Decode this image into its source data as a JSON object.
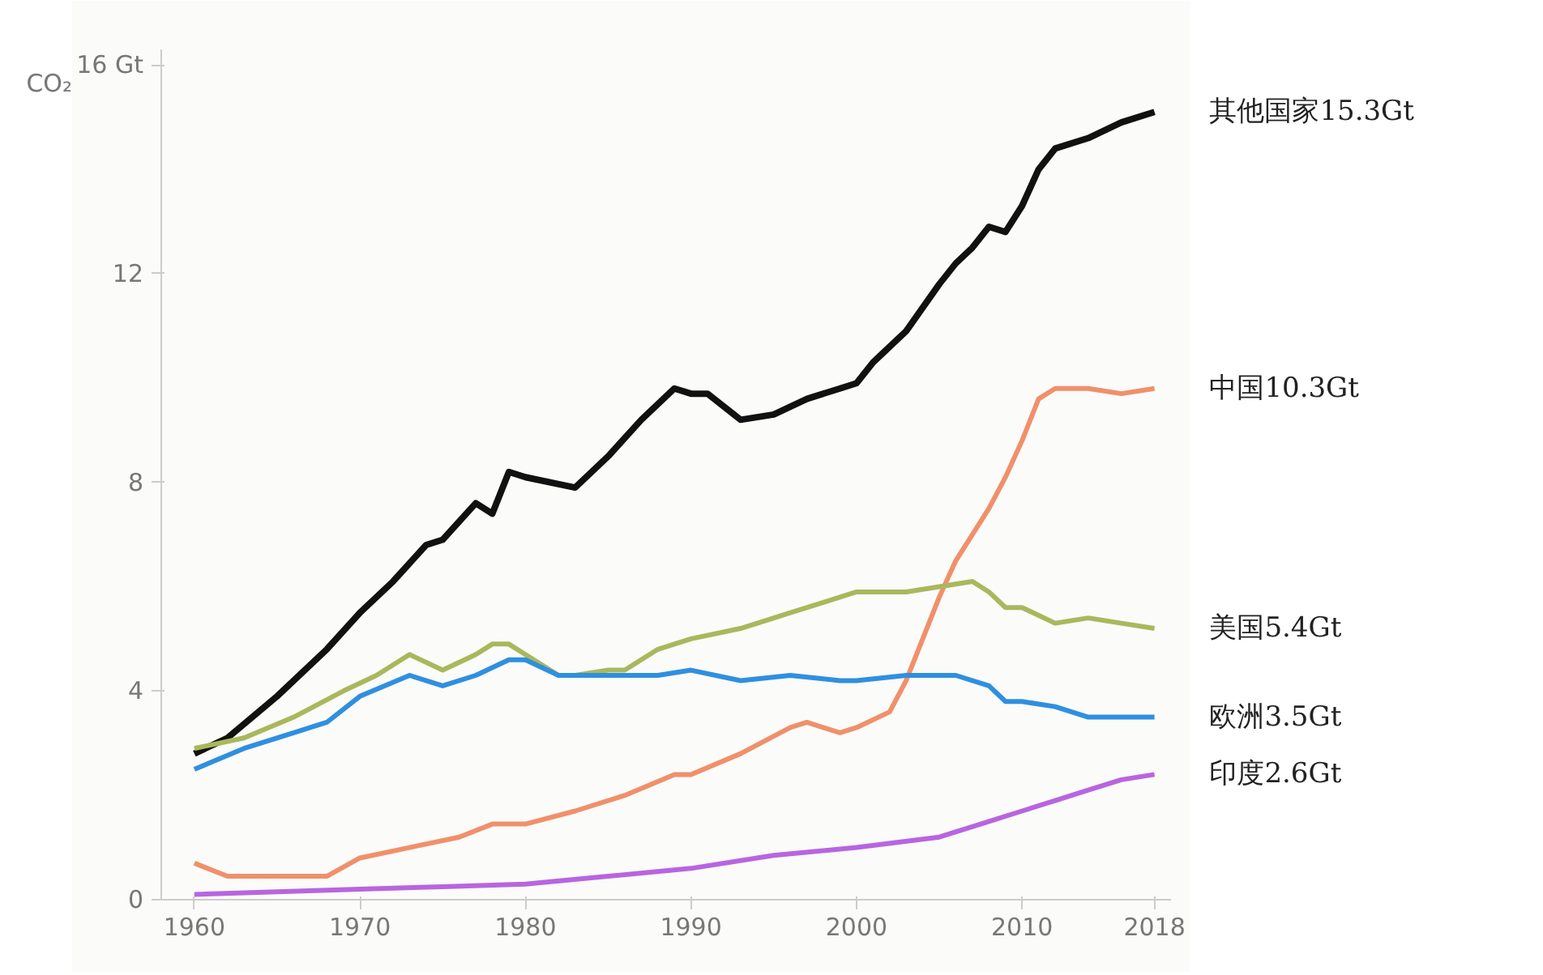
{
  "chart_data": {
    "type": "line",
    "ylabel": "CO₂",
    "xlim": [
      1958,
      2019
    ],
    "xticks": [
      1960,
      1970,
      1980,
      1990,
      2000,
      2010,
      2018
    ],
    "ylim": [
      0,
      16.3
    ],
    "yticks": [
      0,
      4,
      8,
      12,
      {
        "value": 16,
        "label": "16 Gt"
      }
    ],
    "grid": false,
    "line_style": "solid",
    "series": [
      {
        "color": "#111111",
        "x": [
          1960,
          1962,
          1965,
          1968,
          1970,
          1972,
          1974,
          1975,
          1977,
          1978,
          1979,
          1980,
          1983,
          1985,
          1987,
          1989,
          1990,
          1991,
          1993,
          1995,
          1997,
          1999,
          2000,
          2001,
          2003,
          2005,
          2006,
          2007,
          2008,
          2009,
          2010,
          2011,
          2012,
          2014,
          2016,
          2018
        ],
        "values": [
          2.8,
          3.1,
          3.9,
          4.8,
          5.5,
          6.1,
          6.8,
          6.9,
          7.6,
          7.4,
          8.2,
          8.1,
          7.9,
          8.5,
          9.2,
          9.8,
          9.7,
          9.7,
          9.2,
          9.3,
          9.6,
          9.8,
          9.9,
          10.3,
          10.9,
          11.8,
          12.2,
          12.5,
          12.9,
          12.8,
          13.3,
          14.0,
          14.4,
          14.6,
          14.9,
          15.1
        ]
      },
      {
        "color": "#f0906a",
        "x": [
          1960,
          1962,
          1965,
          1968,
          1970,
          1973,
          1976,
          1978,
          1980,
          1983,
          1986,
          1989,
          1990,
          1993,
          1996,
          1997,
          1999,
          2000,
          2002,
          2003,
          2004,
          2005,
          2006,
          2007,
          2008,
          2009,
          2010,
          2011,
          2012,
          2014,
          2016,
          2018
        ],
        "values": [
          0.7,
          0.45,
          0.45,
          0.45,
          0.8,
          1.0,
          1.2,
          1.45,
          1.45,
          1.7,
          2.0,
          2.4,
          2.4,
          2.8,
          3.3,
          3.4,
          3.2,
          3.3,
          3.6,
          4.2,
          5.0,
          5.8,
          6.5,
          7.0,
          7.5,
          8.1,
          8.8,
          9.6,
          9.8,
          9.8,
          9.7,
          9.8
        ]
      },
      {
        "color": "#a9b85c",
        "x": [
          1960,
          1963,
          1966,
          1969,
          1971,
          1973,
          1975,
          1977,
          1978,
          1979,
          1980,
          1982,
          1983,
          1985,
          1986,
          1988,
          1990,
          1993,
          1996,
          1998,
          2000,
          2003,
          2005,
          2007,
          2008,
          2009,
          2010,
          2012,
          2014,
          2016,
          2018
        ],
        "values": [
          2.9,
          3.1,
          3.5,
          4.0,
          4.3,
          4.7,
          4.4,
          4.7,
          4.9,
          4.9,
          4.7,
          4.3,
          4.3,
          4.4,
          4.4,
          4.8,
          5.0,
          5.2,
          5.5,
          5.7,
          5.9,
          5.9,
          6.0,
          6.1,
          5.9,
          5.6,
          5.6,
          5.3,
          5.4,
          5.3,
          5.2
        ]
      },
      {
        "color": "#2f8fe0",
        "x": [
          1960,
          1963,
          1966,
          1968,
          1970,
          1973,
          1975,
          1977,
          1979,
          1980,
          1982,
          1985,
          1988,
          1990,
          1993,
          1996,
          1999,
          2000,
          2003,
          2006,
          2008,
          2009,
          2010,
          2012,
          2014,
          2016,
          2018
        ],
        "values": [
          2.5,
          2.9,
          3.2,
          3.4,
          3.9,
          4.3,
          4.1,
          4.3,
          4.6,
          4.6,
          4.3,
          4.3,
          4.3,
          4.4,
          4.2,
          4.3,
          4.2,
          4.2,
          4.3,
          4.3,
          4.1,
          3.8,
          3.8,
          3.7,
          3.5,
          3.5,
          3.5
        ]
      },
      {
        "color": "#b865e0",
        "x": [
          1960,
          1965,
          1970,
          1975,
          1980,
          1985,
          1990,
          1995,
          2000,
          2005,
          2008,
          2010,
          2012,
          2014,
          2016,
          2018
        ],
        "values": [
          0.1,
          0.15,
          0.2,
          0.25,
          0.3,
          0.45,
          0.6,
          0.85,
          1.0,
          1.2,
          1.5,
          1.7,
          1.9,
          2.1,
          2.3,
          2.4
        ]
      }
    ],
    "annotations": [
      "其他国家15.3Gt",
      "中国10.3Gt",
      "美国5.4Gt",
      "欧洲3.5Gt",
      "印度2.6Gt"
    ]
  }
}
